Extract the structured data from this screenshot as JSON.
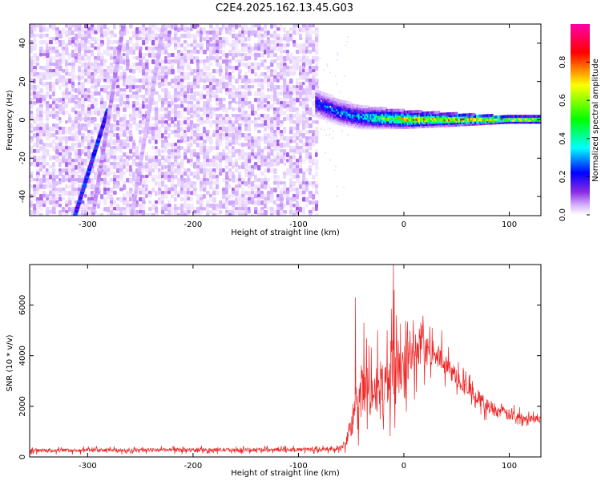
{
  "title": "C2E4.2025.162.13.45.G03",
  "chart_data": [
    {
      "type": "heatmap",
      "xlabel": "Height of straight line (km)",
      "ylabel": "Frequency (Hz)",
      "xlim": [
        -355,
        130
      ],
      "ylim": [
        -50,
        50
      ],
      "xticks": [
        -300,
        -200,
        -100,
        0,
        100
      ],
      "yticks": [
        -40,
        -20,
        0,
        20,
        40
      ],
      "colorbar": {
        "label": "Normalized spectral amplitude",
        "range": [
          0,
          1
        ],
        "ticks": [
          0.0,
          0.2,
          0.4,
          0.6,
          0.8
        ],
        "colormap": [
          "#ffffff",
          "#d6b3ff",
          "#8a2be2",
          "#0000ff",
          "#00ffff",
          "#00ff00",
          "#ffff00",
          "#ff0000",
          "#ff00aa"
        ]
      },
      "features": {
        "noise_region_x": [
          -355,
          -83
        ],
        "noise_region_amplitude": 0.15,
        "signal_onset_x": -83,
        "signal_band": [
          {
            "x": -83,
            "freq": 9,
            "amplitude": 0.45
          },
          {
            "x": -60,
            "freq": 4,
            "amplitude": 0.5
          },
          {
            "x": -40,
            "freq": 1.5,
            "amplitude": 0.55
          },
          {
            "x": -20,
            "freq": 1,
            "amplitude": 0.7
          },
          {
            "x": 0,
            "freq": 0.5,
            "amplitude": 0.85
          },
          {
            "x": 50,
            "freq": 0.3,
            "amplitude": 0.9
          },
          {
            "x": 130,
            "freq": 0.3,
            "amplitude": 0.9
          }
        ],
        "diagonal_streaks": [
          {
            "x_start": -312,
            "y_start": -50,
            "x_end": -281,
            "y_end": 5,
            "amplitude": 0.35
          },
          {
            "x_start": -295,
            "y_start": -50,
            "x_end": -266,
            "y_end": 50,
            "amplitude": 0.15
          },
          {
            "x_start": -258,
            "y_start": -50,
            "x_end": -228,
            "y_end": 50,
            "amplitude": 0.12
          }
        ]
      }
    },
    {
      "type": "line",
      "xlabel": "Height of straight line (km)",
      "ylabel": "SNR (10 * v/v)",
      "xlim": [
        -355,
        130
      ],
      "ylim": [
        0,
        7600
      ],
      "xticks": [
        -300,
        -200,
        -100,
        0,
        100
      ],
      "yticks": [
        0,
        2000,
        4000,
        6000
      ],
      "color": "#ee2222",
      "envelope": [
        {
          "x": -355,
          "base": 250,
          "spread": 150
        },
        {
          "x": -60,
          "base": 300,
          "spread": 150
        },
        {
          "x": -55,
          "base": 600,
          "spread": 500
        },
        {
          "x": -48,
          "base": 1500,
          "spread": 1500
        },
        {
          "x": -40,
          "base": 2500,
          "spread": 2500
        },
        {
          "x": -30,
          "base": 2600,
          "spread": 1800
        },
        {
          "x": -20,
          "base": 2800,
          "spread": 2200
        },
        {
          "x": -12,
          "base": 3400,
          "spread": 2500
        },
        {
          "x": -8,
          "base": 3600,
          "spread": 3500
        },
        {
          "x": 0,
          "base": 3600,
          "spread": 2000
        },
        {
          "x": 10,
          "base": 4000,
          "spread": 1800
        },
        {
          "x": 20,
          "base": 4200,
          "spread": 1200
        },
        {
          "x": 30,
          "base": 4100,
          "spread": 900
        },
        {
          "x": 40,
          "base": 3600,
          "spread": 800
        },
        {
          "x": 60,
          "base": 2700,
          "spread": 700
        },
        {
          "x": 80,
          "base": 2000,
          "spread": 600
        },
        {
          "x": 100,
          "base": 1650,
          "spread": 450
        },
        {
          "x": 130,
          "base": 1480,
          "spread": 250
        }
      ],
      "spikes": [
        {
          "x": -46,
          "y": 6300
        },
        {
          "x": -38,
          "y": 5300
        },
        {
          "x": -25,
          "y": 5000
        },
        {
          "x": -10,
          "y": 7600
        },
        {
          "x": -7,
          "y": 5600
        },
        {
          "x": 9,
          "y": 5400
        },
        {
          "x": 16,
          "y": 5300
        },
        {
          "x": 36,
          "y": 5000
        }
      ]
    }
  ]
}
